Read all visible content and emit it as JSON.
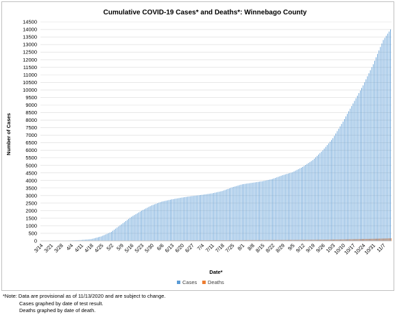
{
  "chart_data": {
    "type": "bar",
    "title": "Cumulative COVID-19 Cases* and Deaths*: Winnebago County",
    "xlabel": "Date*",
    "ylabel": "Number of Cases",
    "ylim": [
      0,
      14500
    ],
    "yticks": [
      0,
      500,
      1000,
      1500,
      2000,
      2500,
      3000,
      3500,
      4000,
      4500,
      5000,
      5500,
      6000,
      6500,
      7000,
      7500,
      8000,
      8500,
      9000,
      9500,
      10000,
      10500,
      11000,
      11500,
      12000,
      12500,
      13000,
      13500,
      14000,
      14500
    ],
    "grid": true,
    "legend_position": "bottom",
    "x_range": [
      "3/14",
      "11/12"
    ],
    "categories": [
      "3/14",
      "3/21",
      "3/28",
      "4/4",
      "4/11",
      "4/18",
      "4/25",
      "5/2",
      "5/9",
      "5/16",
      "5/23",
      "5/30",
      "6/6",
      "6/13",
      "6/20",
      "6/27",
      "7/4",
      "7/11",
      "7/18",
      "7/25",
      "8/1",
      "8/8",
      "8/15",
      "8/22",
      "8/29",
      "9/5",
      "9/12",
      "9/19",
      "9/26",
      "10/3",
      "10/10",
      "10/17",
      "10/24",
      "10/31",
      "11/7"
    ],
    "series": [
      {
        "name": "Cases",
        "color": "#5b9bd5",
        "anchor_dates": [
          "3/14",
          "3/21",
          "3/28",
          "4/4",
          "4/11",
          "4/18",
          "4/25",
          "5/2",
          "5/9",
          "5/16",
          "5/23",
          "5/30",
          "6/6",
          "6/13",
          "6/20",
          "6/27",
          "7/4",
          "7/11",
          "7/18",
          "7/25",
          "8/1",
          "8/8",
          "8/15",
          "8/22",
          "8/29",
          "9/5",
          "9/12",
          "9/19",
          "9/26",
          "10/3",
          "10/10",
          "10/17",
          "10/24",
          "10/31",
          "11/7",
          "11/12"
        ],
        "anchor_values": [
          1,
          5,
          15,
          30,
          60,
          120,
          300,
          600,
          1100,
          1600,
          2000,
          2350,
          2600,
          2750,
          2870,
          2970,
          3050,
          3150,
          3300,
          3550,
          3750,
          3850,
          3950,
          4100,
          4350,
          4550,
          4900,
          5350,
          6000,
          6800,
          7900,
          9100,
          10300,
          11700,
          13300,
          14000
        ]
      },
      {
        "name": "Deaths",
        "color": "#ed7d31",
        "anchor_dates": [
          "3/14",
          "3/28",
          "4/11",
          "4/25",
          "5/9",
          "5/23",
          "6/6",
          "6/20",
          "7/4",
          "7/18",
          "8/1",
          "8/15",
          "8/29",
          "9/12",
          "9/26",
          "10/10",
          "10/24",
          "11/7",
          "11/12"
        ],
        "anchor_values": [
          0,
          0,
          2,
          5,
          10,
          18,
          25,
          32,
          38,
          43,
          50,
          55,
          60,
          68,
          80,
          100,
          130,
          160,
          175
        ]
      }
    ]
  },
  "notes": {
    "line1": "*Note: Data are provisional as of 11/13/2020 and are subject to change.",
    "line2": "Cases graphed by date of test result.",
    "line3": "Deaths graphed by date of death."
  }
}
